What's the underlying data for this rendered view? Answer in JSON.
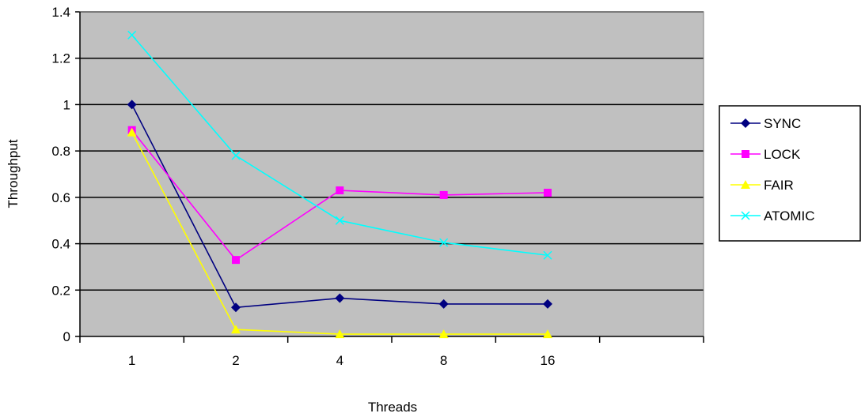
{
  "chart_data": {
    "type": "line",
    "title": "",
    "xlabel": "Threads",
    "ylabel": "Throughput",
    "categories": [
      "1",
      "2",
      "4",
      "8",
      "16"
    ],
    "x_extra_slots": 1,
    "ylim": [
      0,
      1.4
    ],
    "yticks": [
      "0",
      "0.2",
      "0.4",
      "0.6",
      "0.8",
      "1",
      "1.2",
      "1.4"
    ],
    "ytick_values": [
      0,
      0.2,
      0.4,
      0.6,
      0.8,
      1.0,
      1.2,
      1.4
    ],
    "grid": true,
    "plot_background": "#c0c0c0",
    "legend_position": "right",
    "series": [
      {
        "name": "SYNC",
        "color": "#000080",
        "marker": "diamond",
        "values": [
          1.0,
          0.125,
          0.165,
          0.14,
          0.14
        ]
      },
      {
        "name": "LOCK",
        "color": "#ff00ff",
        "marker": "square",
        "values": [
          0.89,
          0.33,
          0.63,
          0.61,
          0.62
        ]
      },
      {
        "name": "FAIR",
        "color": "#ffff00",
        "marker": "triangle",
        "values": [
          0.88,
          0.03,
          0.01,
          0.01,
          0.01
        ]
      },
      {
        "name": "ATOMIC",
        "color": "#00ffff",
        "marker": "x",
        "values": [
          1.3,
          0.78,
          0.5,
          0.405,
          0.35
        ]
      }
    ]
  }
}
